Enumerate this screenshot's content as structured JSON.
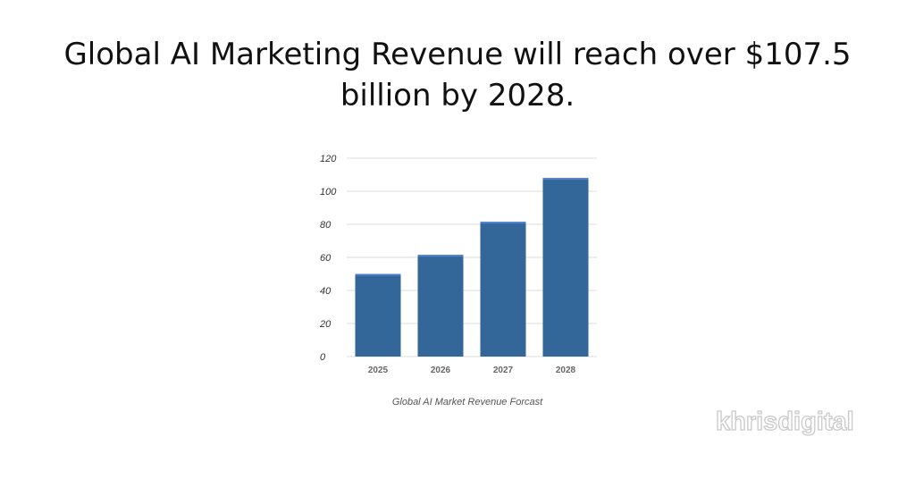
{
  "headline": {
    "line1": "Global AI Marketing Revenue will reach over $107.5",
    "line2": "billion by 2028."
  },
  "brand": {
    "text": "khrisdigital",
    "color": "#c9c9c9"
  },
  "chart_data": {
    "type": "bar",
    "categories": [
      "2025",
      "2026",
      "2027",
      "2028"
    ],
    "values": [
      50,
      61.5,
      81.5,
      108
    ],
    "yticks": [
      0,
      20,
      40,
      60,
      80,
      100,
      120
    ],
    "ylim": [
      0,
      120
    ],
    "caption": "Global AI Market Revenue Forcast",
    "grid": true,
    "colors": {
      "bar": "#336699",
      "bar_cap": "#4f7fcf",
      "grid": "#dddddd"
    }
  }
}
